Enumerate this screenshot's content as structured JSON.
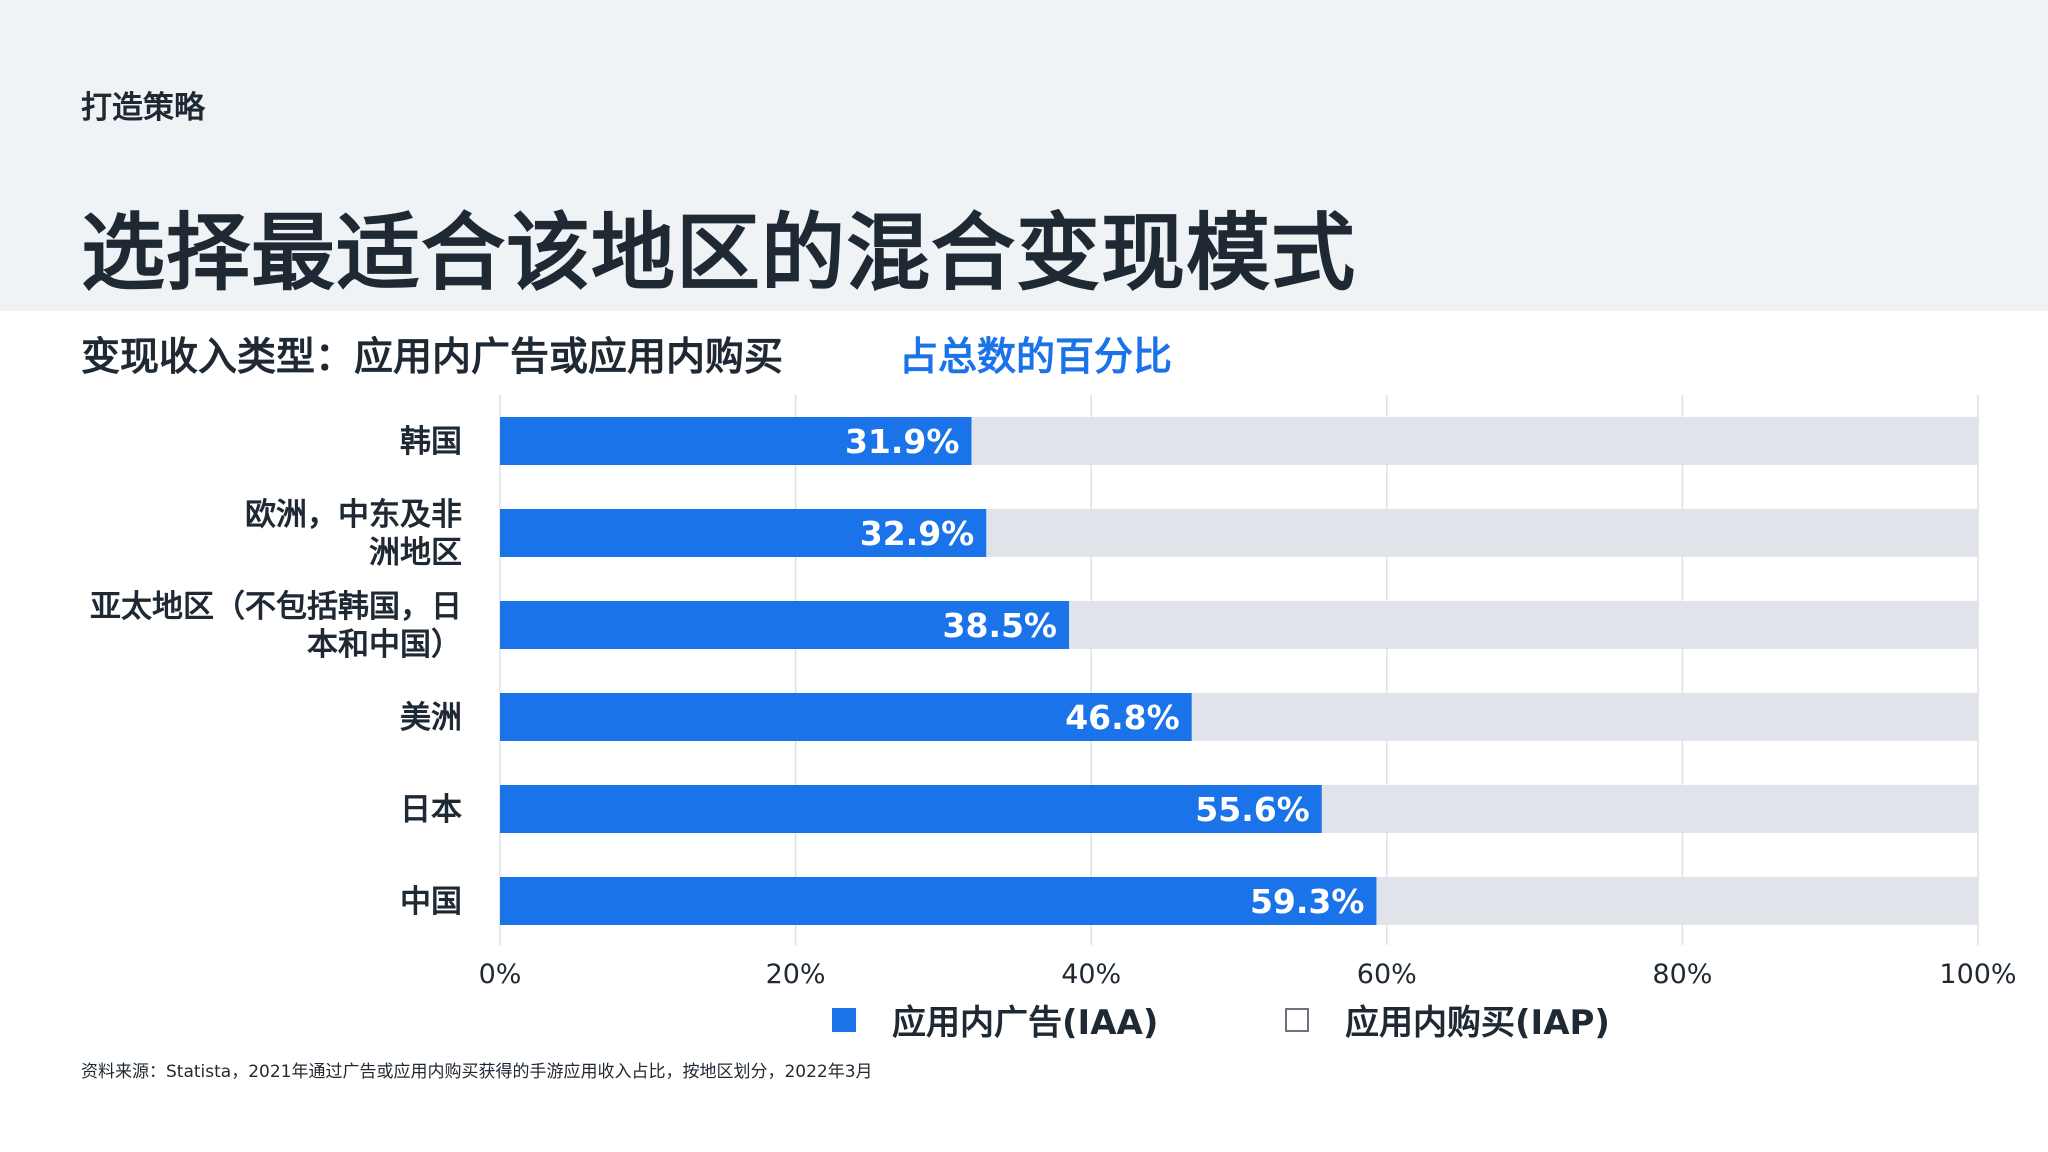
{
  "header": {
    "eyebrow": "打造策略",
    "title": "选择最适合该地区的混合变现模式"
  },
  "subtitle": {
    "main": "变现收入类型：应用内广告或应用内购买",
    "accent": "占总数的百分比"
  },
  "colors": {
    "iaa": "#1a73e8",
    "iap": "#e0e4ea",
    "grid": "#dde1e6",
    "text": "#1f2933"
  },
  "chart_data": {
    "type": "bar",
    "orientation": "horizontal",
    "stacked": true,
    "categories": [
      [
        "韩国"
      ],
      [
        "欧洲，中东及非",
        "洲地区"
      ],
      [
        "亚太地区（不包括韩国，日",
        "本和中国）"
      ],
      [
        "美洲"
      ],
      [
        "日本"
      ],
      [
        "中国"
      ]
    ],
    "series": [
      {
        "name": "应用内广告(IAA)",
        "values": [
          31.9,
          32.9,
          38.5,
          46.8,
          55.6,
          59.3
        ]
      },
      {
        "name": "应用内购买(IAP)",
        "values": [
          68.1,
          67.1,
          61.5,
          53.2,
          44.4,
          40.7
        ]
      }
    ],
    "data_labels": [
      "31.9%",
      "32.9%",
      "38.5%",
      "46.8%",
      "55.6%",
      "59.3%"
    ],
    "xlim": [
      0,
      100
    ],
    "x_ticks": [
      "0%",
      "20%",
      "40%",
      "60%",
      "80%",
      "100%"
    ],
    "grid": true,
    "legend": "bottom"
  },
  "legend": {
    "iaa_label": "应用内广告(IAA)",
    "iap_label": "应用内购买(IAP)"
  },
  "source": "资料来源：Statista，2021年通过广告或应用内购买获得的手游应用收入占比，按地区划分，2022年3月"
}
